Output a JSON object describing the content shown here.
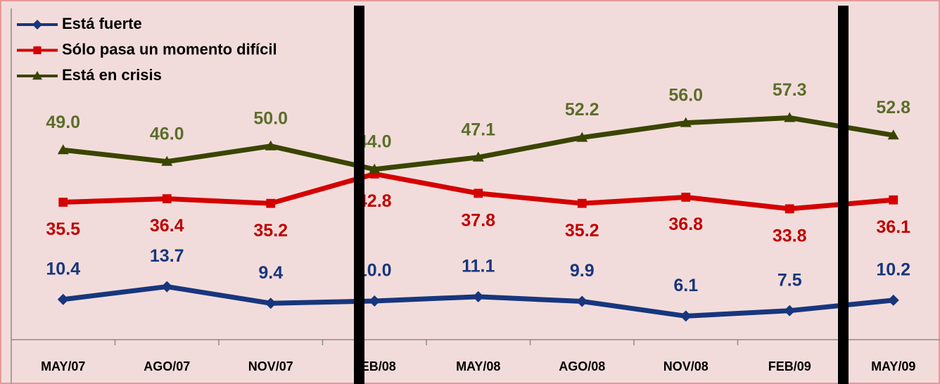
{
  "chart_data": {
    "type": "line",
    "categories": [
      "MAY/07",
      "AGO/07",
      "NOV/07",
      "FEB/08",
      "MAY/08",
      "AGO/08",
      "NOV/08",
      "FEB/09",
      "MAY/09"
    ],
    "series": [
      {
        "name": "Está fuerte",
        "color": "#17367d",
        "label_color": "#17367d",
        "marker": "diamond",
        "values": [
          10.4,
          13.7,
          9.4,
          10.0,
          11.1,
          9.9,
          6.1,
          7.5,
          10.2
        ],
        "value_labels": [
          "10.4",
          "13.7",
          "9.4",
          "10.0",
          "11.1",
          "9.9",
          "6.1",
          "7.5",
          "10.2"
        ]
      },
      {
        "name": "Sólo pasa un momento difícil",
        "color": "#d40000",
        "label_color": "#c00000",
        "marker": "square",
        "values": [
          35.5,
          36.4,
          35.2,
          42.8,
          37.8,
          35.2,
          36.8,
          33.8,
          36.1
        ],
        "value_labels": [
          "35.5",
          "36.4",
          "35.2",
          "42.8",
          "37.8",
          "35.2",
          "36.8",
          "33.8",
          "36.1"
        ]
      },
      {
        "name": "Está en crisis",
        "color": "#3a4500",
        "label_color": "#5b6e2b",
        "marker": "triangle",
        "values": [
          49.0,
          46.0,
          50.0,
          44.0,
          47.1,
          52.2,
          56.0,
          57.3,
          52.8
        ],
        "value_labels": [
          "49.0",
          "46.0",
          "50.0",
          "44.0",
          "47.1",
          "52.2",
          "56.0",
          "57.3",
          "52.8"
        ]
      }
    ],
    "ylim": [
      0,
      85
    ]
  }
}
